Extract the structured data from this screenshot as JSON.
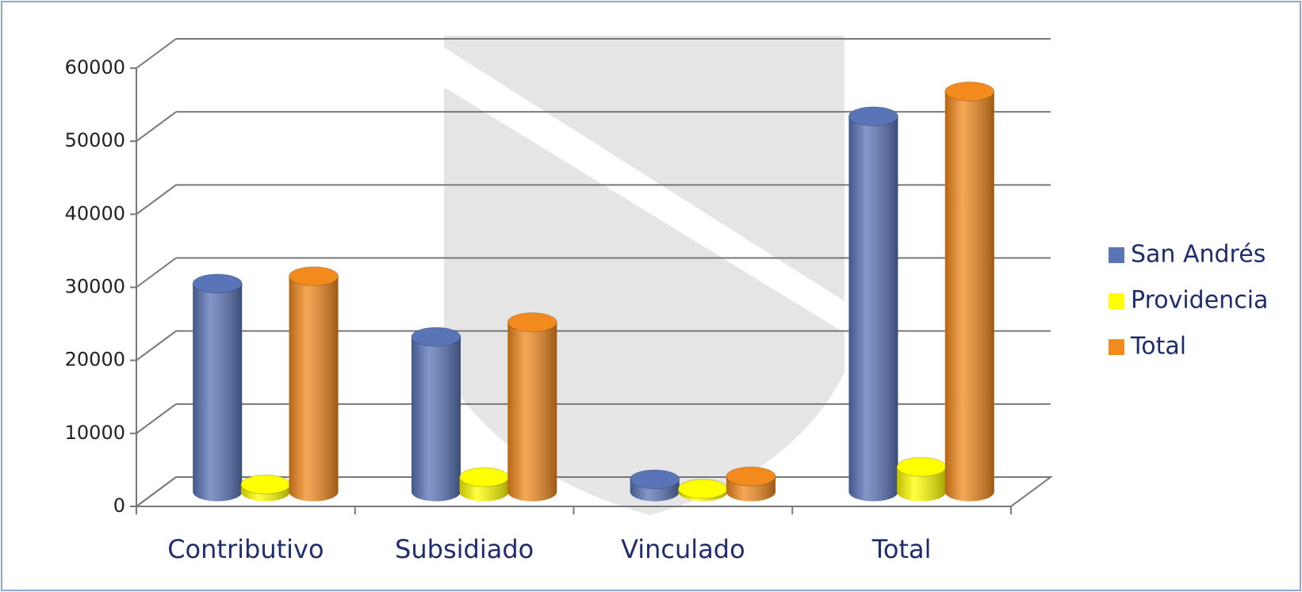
{
  "chart_data": {
    "type": "bar3d",
    "categories": [
      "Contributivo",
      "Subsidiado",
      "Vinculado",
      "Total"
    ],
    "series": [
      {
        "name": "San Andrés",
        "color": "#5a74b8",
        "values": [
          28500,
          21200,
          1700,
          51400
        ]
      },
      {
        "name": "Providencia",
        "color": "#ffff00",
        "values": [
          1000,
          2000,
          400,
          3400
        ]
      },
      {
        "name": "Total",
        "color": "#f28a1e",
        "values": [
          29500,
          23200,
          2100,
          54800
        ]
      }
    ],
    "ylim": [
      0,
      60000
    ],
    "yticks": [
      0,
      10000,
      20000,
      30000,
      40000,
      50000,
      60000
    ],
    "grid": true,
    "legend": "right"
  }
}
